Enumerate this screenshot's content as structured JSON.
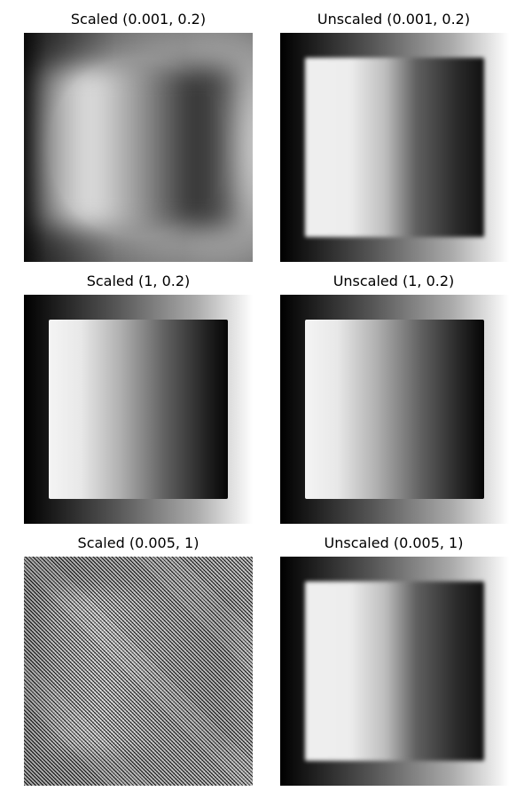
{
  "panels": [
    {
      "title": "Scaled (0.001, 0.2)"
    },
    {
      "title": "Unscaled (0.001, 0.2)"
    },
    {
      "title": "Scaled (1, 0.2)"
    },
    {
      "title": "Unscaled (1, 0.2)"
    },
    {
      "title": "Scaled (0.005, 1)"
    },
    {
      "title": "Unscaled (0.005, 1)"
    }
  ]
}
